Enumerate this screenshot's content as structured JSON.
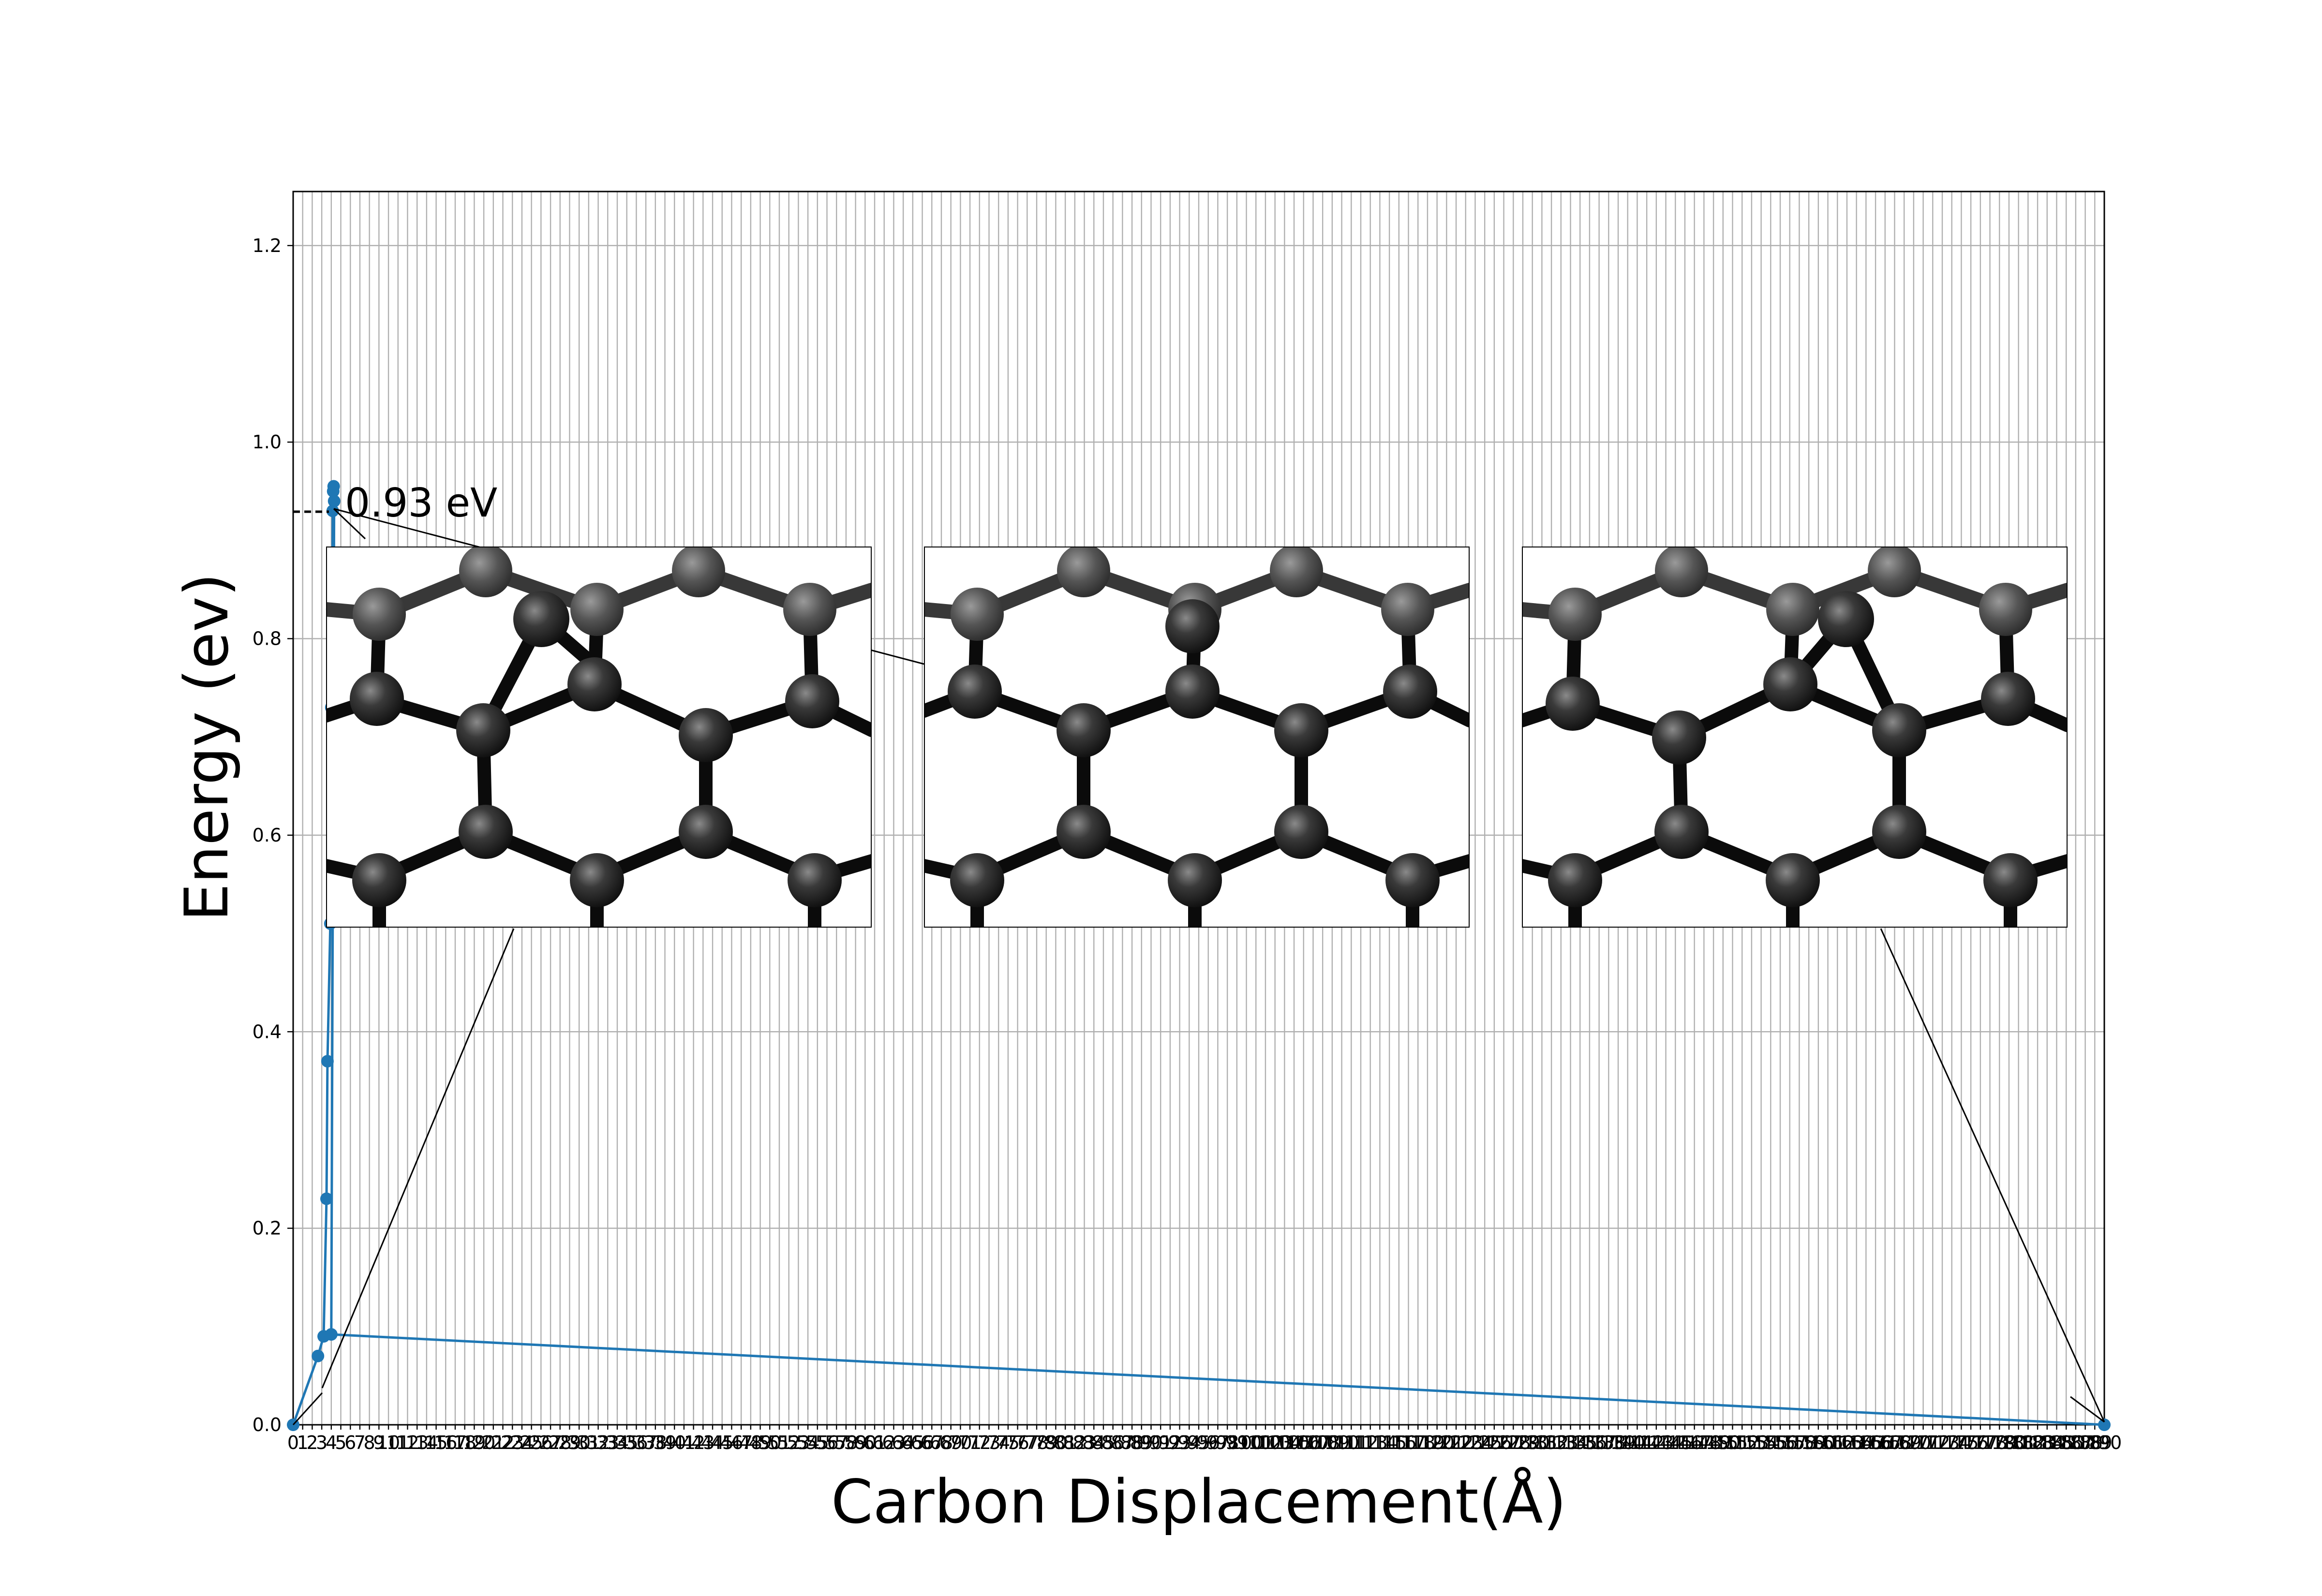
{
  "chart_data": {
    "type": "line",
    "title": "",
    "xlabel": "Carbon Displacement(Å)",
    "ylabel": "Energy (ev)",
    "xlim": [
      0,
      190
    ],
    "ylim": [
      -0.0,
      1.255
    ],
    "grid": true,
    "x_tick_count": 191,
    "y_ticks": [
      0.0,
      0.2,
      0.4,
      0.6,
      0.8,
      1.0,
      1.2
    ],
    "y_tick_labels": [
      "0.0",
      "0.2",
      "0.4",
      "0.6",
      "0.8",
      "1.0",
      "1.2"
    ],
    "series": [
      {
        "color": "#1f77b4",
        "x": [
          0,
          2.6,
          3.2,
          3.5,
          3.6,
          3.9,
          4.0,
          4.1,
          4.15,
          4.2,
          4.25,
          4.3,
          4.0,
          190
        ],
        "y": [
          0.0,
          0.07,
          0.09,
          0.23,
          0.37,
          0.51,
          0.73,
          0.83,
          0.93,
          0.95,
          0.955,
          0.94,
          0.092,
          0.0
        ]
      }
    ],
    "annotations": [
      {
        "text": "0.93 eV",
        "type": "barrier-marker",
        "y": 0.93
      }
    ],
    "insets": [
      {
        "name": "initial-structure",
        "points_to_x": 3.2
      },
      {
        "name": "saddle-structure",
        "points_to_x": 4.2
      },
      {
        "name": "final-structure",
        "points_to_x": 190
      }
    ]
  }
}
